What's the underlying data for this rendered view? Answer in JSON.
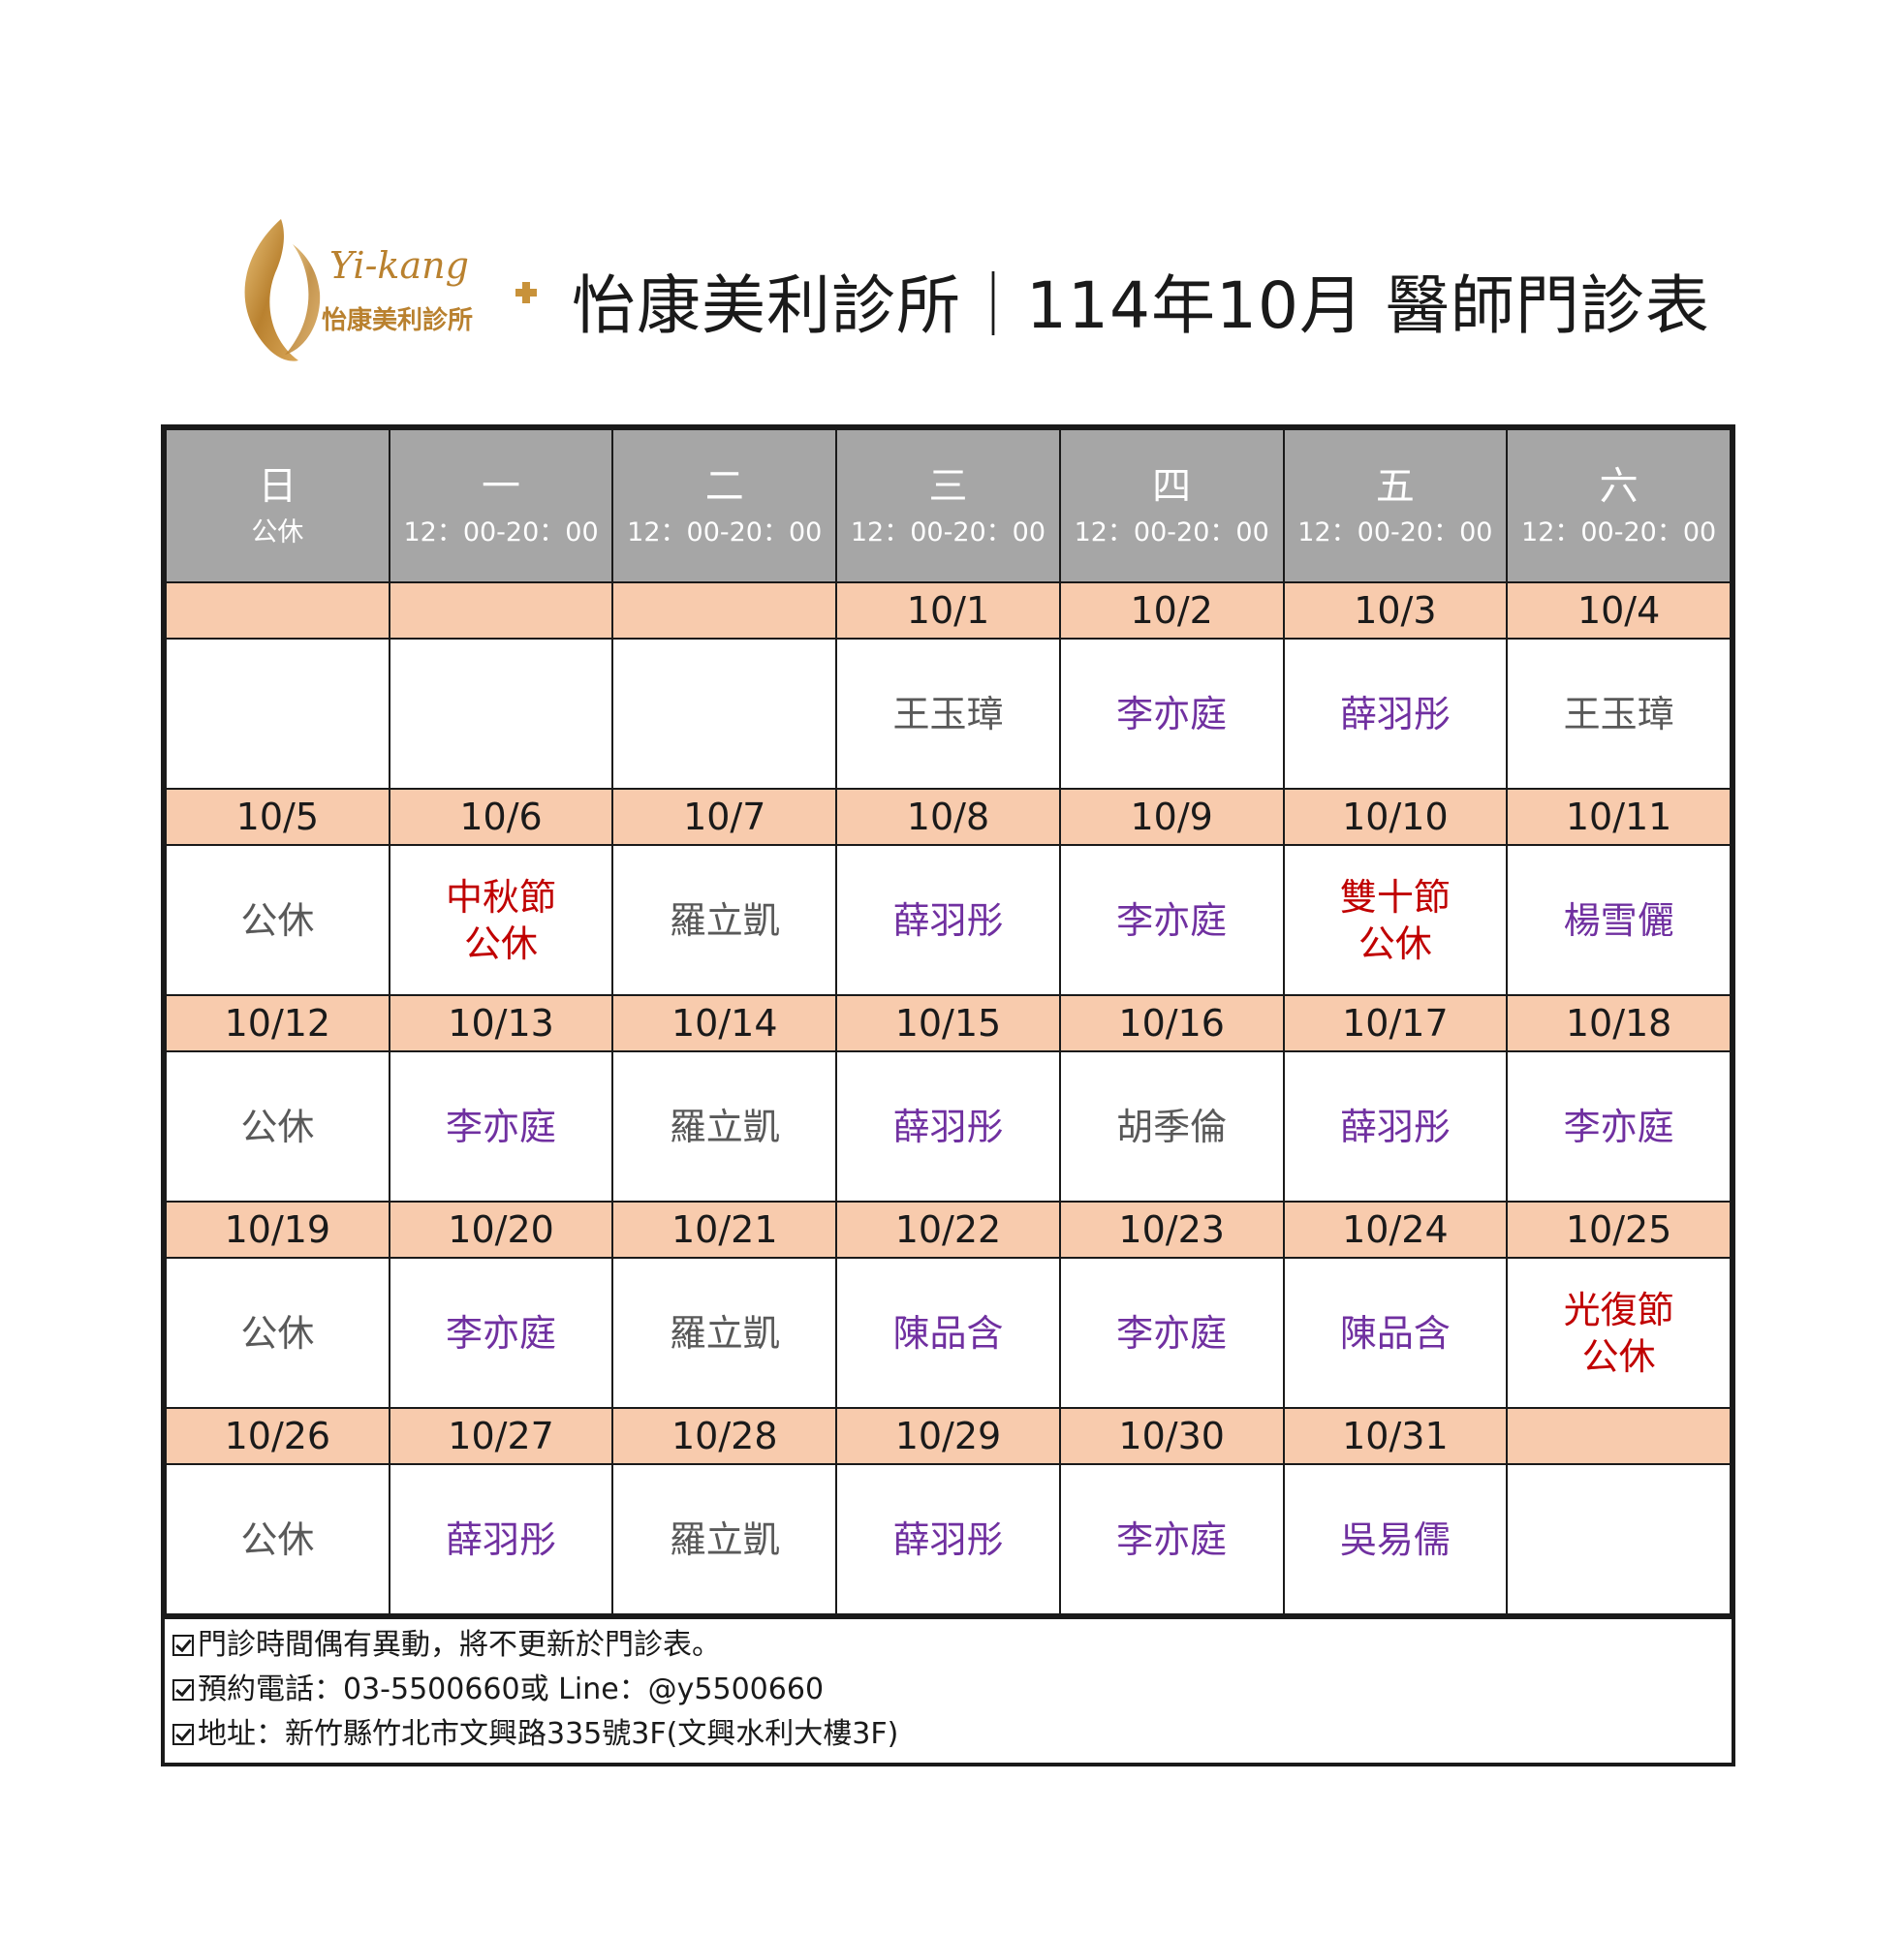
{
  "logo": {
    "text_en": "Yi-kang",
    "text_zh": "怡康美利診所"
  },
  "title": "怡康美利診所｜114年10月 醫師門診表",
  "colors": {
    "header_bg": "#a6a6a6",
    "date_bg": "#f8cbad",
    "doctor_gray": "#595959",
    "doctor_purple": "#7030a0",
    "holiday_red": "#c00000",
    "logo_gold": "#c8923a"
  },
  "headers": [
    {
      "day": "日",
      "hours": "公休"
    },
    {
      "day": "一",
      "hours": "12：00-20：00"
    },
    {
      "day": "二",
      "hours": "12：00-20：00"
    },
    {
      "day": "三",
      "hours": "12：00-20：00"
    },
    {
      "day": "四",
      "hours": "12：00-20：00"
    },
    {
      "day": "五",
      "hours": "12：00-20：00"
    },
    {
      "day": "六",
      "hours": "12：00-20：00"
    }
  ],
  "weeks": [
    {
      "dates": [
        "",
        "",
        "",
        "10/1",
        "10/2",
        "10/3",
        "10/4"
      ],
      "cells": [
        {
          "lines": [],
          "color": "gray"
        },
        {
          "lines": [],
          "color": "gray"
        },
        {
          "lines": [],
          "color": "gray"
        },
        {
          "lines": [
            "王玉璋"
          ],
          "color": "gray"
        },
        {
          "lines": [
            "李亦庭"
          ],
          "color": "purple"
        },
        {
          "lines": [
            "薛羽彤"
          ],
          "color": "purple"
        },
        {
          "lines": [
            "王玉璋"
          ],
          "color": "gray"
        }
      ]
    },
    {
      "dates": [
        "10/5",
        "10/6",
        "10/7",
        "10/8",
        "10/9",
        "10/10",
        "10/11"
      ],
      "cells": [
        {
          "lines": [
            "公休"
          ],
          "color": "gray"
        },
        {
          "lines": [
            "中秋節",
            "公休"
          ],
          "color": "red"
        },
        {
          "lines": [
            "羅立凱"
          ],
          "color": "gray"
        },
        {
          "lines": [
            "薛羽彤"
          ],
          "color": "purple"
        },
        {
          "lines": [
            "李亦庭"
          ],
          "color": "purple"
        },
        {
          "lines": [
            "雙十節",
            "公休"
          ],
          "color": "red"
        },
        {
          "lines": [
            "楊雪儷"
          ],
          "color": "purple"
        }
      ]
    },
    {
      "dates": [
        "10/12",
        "10/13",
        "10/14",
        "10/15",
        "10/16",
        "10/17",
        "10/18"
      ],
      "cells": [
        {
          "lines": [
            "公休"
          ],
          "color": "gray"
        },
        {
          "lines": [
            "李亦庭"
          ],
          "color": "purple"
        },
        {
          "lines": [
            "羅立凱"
          ],
          "color": "gray"
        },
        {
          "lines": [
            "薛羽彤"
          ],
          "color": "purple"
        },
        {
          "lines": [
            "胡季倫"
          ],
          "color": "gray"
        },
        {
          "lines": [
            "薛羽彤"
          ],
          "color": "purple"
        },
        {
          "lines": [
            "李亦庭"
          ],
          "color": "purple"
        }
      ]
    },
    {
      "dates": [
        "10/19",
        "10/20",
        "10/21",
        "10/22",
        "10/23",
        "10/24",
        "10/25"
      ],
      "cells": [
        {
          "lines": [
            "公休"
          ],
          "color": "gray"
        },
        {
          "lines": [
            "李亦庭"
          ],
          "color": "purple"
        },
        {
          "lines": [
            "羅立凱"
          ],
          "color": "gray"
        },
        {
          "lines": [
            "陳品含"
          ],
          "color": "purple"
        },
        {
          "lines": [
            "李亦庭"
          ],
          "color": "purple"
        },
        {
          "lines": [
            "陳品含"
          ],
          "color": "purple"
        },
        {
          "lines": [
            "光復節",
            "公休"
          ],
          "color": "red"
        }
      ]
    },
    {
      "dates": [
        "10/26",
        "10/27",
        "10/28",
        "10/29",
        "10/30",
        "10/31",
        ""
      ],
      "cells": [
        {
          "lines": [
            "公休"
          ],
          "color": "gray"
        },
        {
          "lines": [
            "薛羽彤"
          ],
          "color": "purple"
        },
        {
          "lines": [
            "羅立凱"
          ],
          "color": "gray"
        },
        {
          "lines": [
            "薛羽彤"
          ],
          "color": "purple"
        },
        {
          "lines": [
            "李亦庭"
          ],
          "color": "purple"
        },
        {
          "lines": [
            "吳易儒"
          ],
          "color": "purple"
        },
        {
          "lines": [],
          "color": "gray"
        }
      ]
    }
  ],
  "notes": [
    "門診時間偶有異動，將不更新於門診表。",
    "預約電話：03-5500660或 Line：@y5500660",
    "地址：新竹縣竹北市文興路335號3F(文興水利大樓3F)"
  ]
}
